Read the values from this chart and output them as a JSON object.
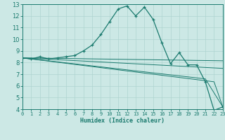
{
  "title": "",
  "xlabel": "Humidex (Indice chaleur)",
  "bg_color": "#cce8e5",
  "line_color": "#1a7a6e",
  "grid_color": "#aed4d0",
  "xlim": [
    0,
    23
  ],
  "ylim": [
    4,
    13
  ],
  "xticks": [
    0,
    1,
    2,
    3,
    4,
    5,
    6,
    7,
    8,
    9,
    10,
    11,
    12,
    13,
    14,
    15,
    16,
    17,
    18,
    19,
    20,
    21,
    22,
    23
  ],
  "yticks": [
    4,
    5,
    6,
    7,
    8,
    9,
    10,
    11,
    12,
    13
  ],
  "main_x": [
    0,
    1,
    2,
    3,
    4,
    5,
    6,
    7,
    8,
    9,
    10,
    11,
    12,
    13,
    14,
    15,
    16,
    17,
    18,
    19,
    20,
    21,
    22,
    23
  ],
  "main_y": [
    8.4,
    8.3,
    8.5,
    8.3,
    8.4,
    8.5,
    8.6,
    9.0,
    9.5,
    10.4,
    11.5,
    12.6,
    12.85,
    12.0,
    12.75,
    11.7,
    9.7,
    7.9,
    8.85,
    7.8,
    7.8,
    6.35,
    3.9,
    4.2
  ],
  "line1_x": [
    0,
    23
  ],
  "line1_y": [
    8.4,
    8.15
  ],
  "line2_x": [
    0,
    23
  ],
  "line2_y": [
    8.4,
    7.5
  ],
  "line3_x": [
    0,
    22,
    23
  ],
  "line3_y": [
    8.4,
    6.35,
    4.2
  ],
  "line4_x": [
    0,
    21,
    23
  ],
  "line4_y": [
    8.4,
    6.6,
    4.2
  ]
}
